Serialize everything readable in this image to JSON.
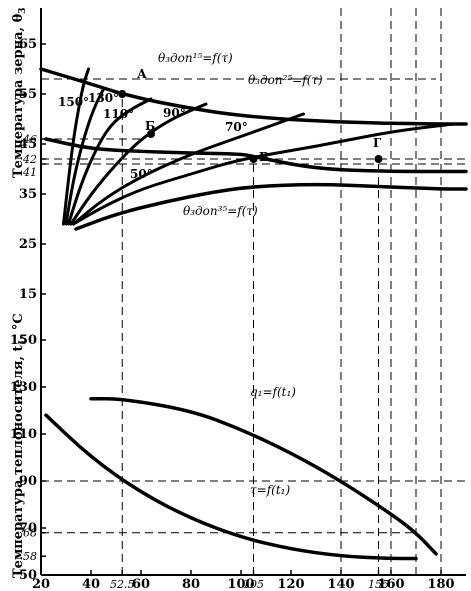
{
  "chart_data": {
    "type": "line",
    "ylabel_top": "Температура зерна, θ",
    "ylabel_top_sub": "3",
    "ylabel_bottom": "Температура теплоносителя, t",
    "ylabel_bottom_sub": "1",
    "ylabel_bottom_unit": ", °C",
    "x_ticks": [
      "20",
      "40",
      "52.5",
      "60",
      "80",
      "100",
      "105",
      "120",
      "140",
      "155",
      "160",
      "180"
    ],
    "y_ticks_top": [
      "65",
      "55",
      "46",
      "45",
      "42",
      "41",
      "35",
      "25",
      "15"
    ],
    "y_ticks_bottom": [
      "150",
      "130",
      "110",
      "90",
      "70",
      "68",
      "58",
      "50"
    ],
    "annotations": {
      "theta15": "θ₃доп¹⁵=f(τ)",
      "theta25": "θ₃доп²⁵=f(τ)",
      "theta35": "θ₃доп³⁵=f(τ)",
      "q1": "q₁=f(t₁)",
      "tau": "τ=f(t₁)",
      "temp150": "150°",
      "temp130": "130°",
      "temp110": "110°",
      "temp90": "90°",
      "temp70": "70°",
      "temp50": "50°",
      "pointA": "А",
      "pointB": "Б",
      "pointV": "В",
      "pointG": "Г"
    },
    "series": [
      {
        "name": "θ₃доп¹⁵=f(τ)",
        "x": [
          20,
          40,
          52.5,
          70,
          100,
          140,
          180,
          190
        ],
        "y": [
          60,
          57,
          55,
          53,
          50.5,
          49.3,
          49,
          49
        ]
      },
      {
        "name": "θ₃доп²⁵=f(τ)",
        "x": [
          22,
          40,
          60,
          80,
          100,
          105,
          130,
          160,
          180,
          190
        ],
        "y": [
          46,
          44,
          43.5,
          43.2,
          43,
          42.5,
          40,
          39.5,
          39.5,
          39.5
        ]
      },
      {
        "name": "θ₃доп³⁵=f(τ)",
        "x": [
          34,
          50,
          70,
          90,
          105,
          130,
          155,
          180,
          190
        ],
        "y": [
          28,
          31,
          33.5,
          35.5,
          36.5,
          37,
          36.5,
          36,
          36
        ]
      },
      {
        "name": "150°",
        "x": [
          29,
          31,
          33,
          35,
          37,
          39
        ],
        "y": [
          29,
          38,
          46,
          52,
          57,
          60
        ]
      },
      {
        "name": "130°",
        "x": [
          30,
          33,
          37,
          41,
          45
        ],
        "y": [
          29,
          38,
          46,
          52,
          56
        ]
      },
      {
        "name": "110°",
        "x": [
          31,
          36,
          42,
          48,
          56,
          64
        ],
        "y": [
          29,
          37,
          44,
          49,
          52,
          54
        ]
      },
      {
        "name": "90°",
        "x": [
          32,
          40,
          50,
          60,
          72,
          86
        ],
        "y": [
          29,
          35,
          41,
          46,
          50,
          53
        ]
      },
      {
        "name": "70°",
        "x": [
          33,
          45,
          60,
          80,
          100,
          125
        ],
        "y": [
          29,
          34,
          38.5,
          43,
          46.5,
          51
        ]
      },
      {
        "name": "50°",
        "x": [
          33,
          45,
          60,
          80,
          100,
          130,
          160,
          185
        ],
        "y": [
          29,
          32.5,
          36,
          39,
          42,
          44.5,
          47.5,
          49
        ]
      },
      {
        "name": "q₁=f(t₁)",
        "x": [
          40,
          52.5,
          80,
          100,
          120,
          140,
          160,
          170,
          178
        ],
        "y": [
          125,
          125,
          120,
          112,
          102,
          90,
          76,
          68,
          59
        ]
      },
      {
        "name": "τ=f(t₁)",
        "x": [
          22,
          40,
          60,
          80,
          100,
          120,
          140,
          160,
          170
        ],
        "y": [
          118,
          100,
          85,
          74,
          66,
          61,
          58,
          57,
          57
        ]
      }
    ],
    "guides": [
      {
        "type": "vline",
        "x": 52.5,
        "from": 50,
        "to": 55
      },
      {
        "type": "vline",
        "x": 105,
        "from": 50,
        "to": 42
      },
      {
        "type": "vline",
        "x": 155,
        "from": 50,
        "to": 42
      },
      {
        "type": "vline",
        "x": 140,
        "from": 50,
        "to": 65
      },
      {
        "type": "vline",
        "x": 160,
        "from": 50,
        "to": 65
      },
      {
        "type": "vline",
        "x": 170,
        "from": 50,
        "to": 65
      },
      {
        "type": "vline",
        "x": 180,
        "from": 50,
        "to": 65
      },
      {
        "type": "hline",
        "y": 90,
        "from": 20,
        "to": 190
      },
      {
        "type": "hline",
        "y": 68,
        "from": 20,
        "to": 170
      },
      {
        "type": "hline",
        "y": 58,
        "from": 20,
        "to": 178
      },
      {
        "type": "hline",
        "y": 46,
        "from": 20,
        "to": 60
      },
      {
        "type": "hline",
        "y": 42,
        "from": 20,
        "to": 190
      },
      {
        "type": "hline",
        "y": 41,
        "from": 20,
        "to": 190
      }
    ],
    "points": [
      {
        "label": "А",
        "x": 52.5,
        "y": 55
      },
      {
        "label": "Б",
        "x": 64,
        "y": 47
      },
      {
        "label": "В",
        "x": 105,
        "y": 42
      },
      {
        "label": "Г",
        "x": 155,
        "y": 42
      }
    ],
    "grid": false,
    "legend": "none"
  }
}
